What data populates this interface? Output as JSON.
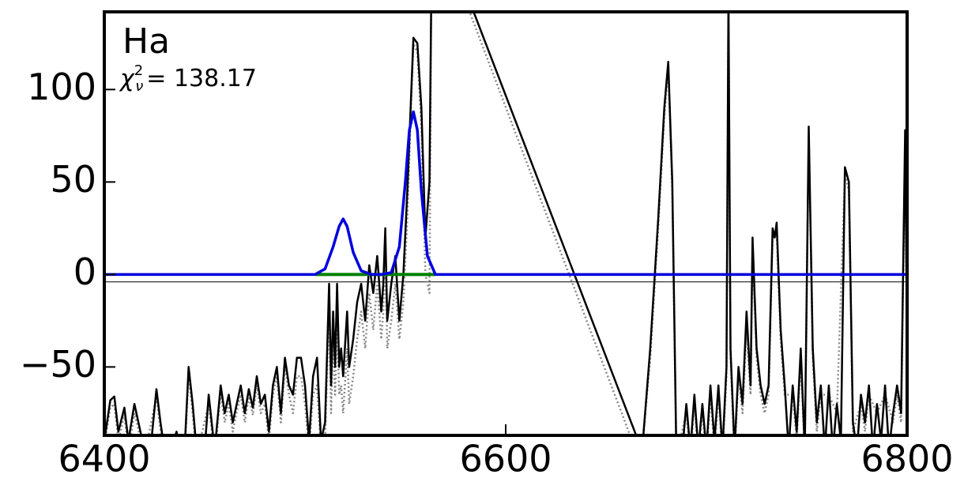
{
  "chart_data": {
    "type": "line",
    "annotation": "Ha",
    "stat_label": {
      "symbol": "χ",
      "sup": "2",
      "sub": "ν",
      "text": "= 138.17"
    },
    "xlim": [
      6400,
      6800
    ],
    "ylim": [
      -87,
      142
    ],
    "xticks": [
      6400,
      6600,
      6800
    ],
    "yticks": [
      {
        "value": -50,
        "label": "−50"
      },
      0,
      50,
      100
    ],
    "series": [
      {
        "color": "#000000",
        "linestyle": "solid",
        "width": 1,
        "x": [
          6400,
          6800
        ],
        "values": [
          -4,
          -4
        ]
      },
      {
        "color": "#888888",
        "linestyle": "dotted",
        "width": 2.5,
        "x": [
          6400,
          6403,
          6405,
          6407,
          6410,
          6412,
          6415,
          6417,
          6420,
          6426,
          6428,
          6430,
          6436,
          6440,
          6442,
          6444,
          6446,
          6452,
          6455,
          6458,
          6460,
          6462,
          6464,
          6466,
          6468,
          6470,
          6472,
          6474,
          6476,
          6478,
          6480,
          6482,
          6484,
          6486,
          6488,
          6490,
          6492,
          6494,
          6496,
          6498,
          6500,
          6502,
          6504,
          6506,
          6508,
          6510,
          6512,
          6513,
          6514,
          6515,
          6516,
          6517,
          6518,
          6519,
          6521,
          6522,
          6524,
          6526,
          6528,
          6530,
          6532,
          6534,
          6536,
          6538,
          6539,
          6540,
          6541,
          6543,
          6545,
          6547,
          6549,
          6551,
          6553,
          6554,
          6556,
          6558,
          6560,
          6562,
          6563,
          6582,
          6662,
          6668,
          6672,
          6676,
          6679,
          6681,
          6683,
          6685,
          6690,
          6692,
          6694,
          6696,
          6698,
          6700,
          6702,
          6704,
          6706,
          6708,
          6710,
          6711,
          6712,
          6714,
          6716,
          6718,
          6720,
          6722,
          6723,
          6725,
          6727,
          6729,
          6731,
          6733,
          6735,
          6737,
          6739,
          6743,
          6745,
          6747,
          6749,
          6751,
          6753,
          6755,
          6757,
          6761,
          6765,
          6769,
          6771,
          6773,
          6777,
          6779,
          6781,
          6785,
          6789,
          6793,
          6795,
          6797,
          6799,
          6800
        ],
        "values": [
          -92,
          -72,
          -70,
          -90,
          -76,
          -95,
          -75,
          -84,
          -98,
          -66,
          -84,
          -98,
          -90,
          -98,
          -54,
          -75,
          -98,
          -70,
          -98,
          -64,
          -80,
          -70,
          -85,
          -74,
          -65,
          -80,
          -66,
          -76,
          -60,
          -75,
          -70,
          -90,
          -65,
          -55,
          -80,
          -50,
          -65,
          -75,
          -55,
          -55,
          -70,
          -95,
          -65,
          -60,
          -95,
          -90,
          -15,
          -75,
          -35,
          -65,
          -25,
          -65,
          -60,
          -75,
          -40,
          -70,
          -55,
          -35,
          -20,
          -40,
          -10,
          -30,
          -5,
          -35,
          -20,
          15,
          -40,
          -25,
          -5,
          -35,
          -15,
          30,
          95,
          125,
          120,
          80,
          0,
          -10,
          160,
          142,
          -87,
          -95,
          -45,
          25,
          85,
          112,
          45,
          -98,
          -75,
          -98,
          -70,
          -98,
          -75,
          -98,
          -65,
          -95,
          -65,
          -98,
          -55,
          145,
          -45,
          -98,
          -55,
          -75,
          -30,
          -65,
          15,
          -45,
          -65,
          -75,
          -65,
          20,
          22,
          -35,
          -65,
          -65,
          -90,
          -45,
          -98,
          75,
          -45,
          -85,
          -65,
          -65,
          -75,
          55,
          45,
          -85,
          -70,
          -85,
          -65,
          -75,
          -65,
          -80,
          -65,
          -80,
          72,
          -55
        ]
      },
      {
        "color": "#000000",
        "linestyle": "solid",
        "width": 2.5,
        "x": [
          6400,
          6403,
          6405,
          6407,
          6410,
          6412,
          6415,
          6417,
          6420,
          6423,
          6426,
          6428,
          6430,
          6433,
          6436,
          6438,
          6440,
          6442,
          6444,
          6446,
          6450,
          6452,
          6455,
          6458,
          6460,
          6462,
          6464,
          6466,
          6468,
          6470,
          6472,
          6474,
          6476,
          6478,
          6480,
          6482,
          6484,
          6486,
          6488,
          6490,
          6492,
          6494,
          6496,
          6498,
          6500,
          6502,
          6504,
          6506,
          6508,
          6510,
          6512,
          6513,
          6514,
          6515,
          6516,
          6517,
          6518,
          6519,
          6521,
          6522,
          6524,
          6526,
          6528,
          6530,
          6532,
          6534,
          6536,
          6538,
          6539,
          6540,
          6541,
          6543,
          6545,
          6547,
          6549,
          6551,
          6553,
          6554,
          6556,
          6558,
          6560,
          6562,
          6563,
          6564,
          6584,
          6665,
          6668,
          6672,
          6676,
          6679,
          6681,
          6683,
          6685,
          6688,
          6690,
          6692,
          6694,
          6696,
          6698,
          6700,
          6702,
          6704,
          6706,
          6708,
          6710,
          6711,
          6712,
          6714,
          6716,
          6718,
          6720,
          6722,
          6723,
          6725,
          6727,
          6729,
          6731,
          6733,
          6734,
          6735,
          6737,
          6739,
          6741,
          6743,
          6745,
          6747,
          6749,
          6751,
          6753,
          6755,
          6757,
          6759,
          6761,
          6763,
          6765,
          6767,
          6769,
          6771,
          6773,
          6775,
          6777,
          6779,
          6781,
          6783,
          6785,
          6787,
          6789,
          6791,
          6793,
          6795,
          6797,
          6799,
          6800
        ],
        "values": [
          -90,
          -68,
          -66,
          -85,
          -72,
          -90,
          -70,
          -80,
          -95,
          -95,
          -62,
          -80,
          -95,
          -95,
          -85,
          -95,
          -95,
          -50,
          -70,
          -95,
          -95,
          -65,
          -95,
          -60,
          -75,
          -65,
          -80,
          -70,
          -60,
          -75,
          -62,
          -72,
          -55,
          -70,
          -65,
          -85,
          -60,
          -50,
          -75,
          -45,
          -60,
          -65,
          -45,
          -45,
          -60,
          -90,
          -55,
          -45,
          -90,
          -80,
          -5,
          -60,
          -20,
          -50,
          -5,
          -50,
          -40,
          -55,
          -20,
          -50,
          -35,
          -15,
          -5,
          -25,
          5,
          -10,
          10,
          -20,
          -5,
          25,
          -25,
          -5,
          10,
          -25,
          0,
          45,
          100,
          128,
          125,
          90,
          20,
          50,
          160,
          300,
          142,
          -87,
          -95,
          -40,
          30,
          90,
          115,
          50,
          -95,
          -95,
          -70,
          -95,
          -65,
          -95,
          -70,
          -95,
          -60,
          -90,
          -60,
          -95,
          -50,
          150,
          -40,
          -95,
          -50,
          -70,
          -20,
          -60,
          20,
          -40,
          -60,
          -70,
          -60,
          25,
          20,
          28,
          -30,
          -60,
          -95,
          -60,
          -85,
          -40,
          -95,
          80,
          -40,
          -80,
          -60,
          -95,
          -60,
          -95,
          -70,
          -90,
          58,
          50,
          -80,
          -95,
          -65,
          -80,
          -60,
          -95,
          -70,
          -90,
          -60,
          -95,
          -75,
          -60,
          -75,
          78,
          -40
        ]
      },
      {
        "color": "#008000",
        "linestyle": "solid",
        "width": 4,
        "x": [
          6505,
          6565
        ],
        "values": [
          0,
          0
        ]
      },
      {
        "color": "#0000dd",
        "linestyle": "solid",
        "width": 3.5,
        "x": [
          6400,
          6505,
          6510,
          6514,
          6517,
          6519,
          6521,
          6524,
          6528,
          6533,
          6538,
          6543,
          6547,
          6550,
          6552,
          6554,
          6556,
          6558,
          6561,
          6565,
          6570,
          6800
        ],
        "values": [
          0,
          0,
          3,
          15,
          26,
          30,
          26,
          12,
          2,
          0,
          0,
          1,
          15,
          50,
          78,
          88,
          78,
          45,
          10,
          0,
          0,
          0
        ]
      }
    ]
  }
}
